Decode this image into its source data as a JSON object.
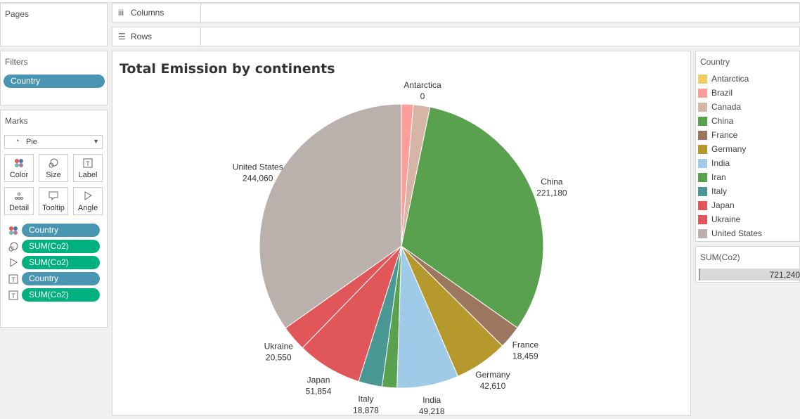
{
  "pages": {
    "title": "Pages"
  },
  "shelves": {
    "columns": "Columns",
    "rows": "Rows"
  },
  "filters": {
    "title": "Filters",
    "pill": "Country"
  },
  "marks": {
    "title": "Marks",
    "type": "Pie",
    "buttons": {
      "color": "Color",
      "size": "Size",
      "label": "Label",
      "detail": "Detail",
      "tooltip": "Tooltip",
      "angle": "Angle"
    },
    "rows": [
      {
        "icon": "color-icon",
        "label": "Country",
        "kind": "dimension"
      },
      {
        "icon": "size-icon",
        "label": "SUM(Co2)",
        "kind": "measure"
      },
      {
        "icon": "angle-icon",
        "label": "SUM(Co2)",
        "kind": "measure"
      },
      {
        "icon": "label-icon",
        "label": "Country",
        "kind": "dimension"
      },
      {
        "icon": "label-icon",
        "label": "SUM(Co2)",
        "kind": "measure"
      }
    ]
  },
  "legend": {
    "title": "Country",
    "items": [
      {
        "label": "Antarctica",
        "color": "#f1ce63"
      },
      {
        "label": "Brazil",
        "color": "#ff9d9a"
      },
      {
        "label": "Canada",
        "color": "#d7b5a6"
      },
      {
        "label": "China",
        "color": "#59a14f"
      },
      {
        "label": "France",
        "color": "#9d7660"
      },
      {
        "label": "Germany",
        "color": "#b6992d"
      },
      {
        "label": "India",
        "color": "#a0cbe8"
      },
      {
        "label": "Iran",
        "color": "#59a14f"
      },
      {
        "label": "Italy",
        "color": "#499894"
      },
      {
        "label": "Japan",
        "color": "#e15759"
      },
      {
        "label": "Ukraine",
        "color": "#e15759"
      },
      {
        "label": "United States",
        "color": "#bab0ac"
      }
    ]
  },
  "size_legend": {
    "title": "SUM(Co2)",
    "value": "721,240"
  },
  "chart_data": {
    "type": "pie",
    "title": "Total Emission by continents",
    "slices": [
      {
        "name": "Antarctica",
        "value": 0,
        "value_label": "0",
        "color": "#f1ce63",
        "labeled": true
      },
      {
        "name": "Brazil",
        "value": 9400,
        "color": "#ff9d9a",
        "labeled": false
      },
      {
        "name": "Canada",
        "value": 13300,
        "color": "#d7b5a6",
        "labeled": false
      },
      {
        "name": "China",
        "value": 221180,
        "value_label": "221,180",
        "color": "#59a14f",
        "labeled": true
      },
      {
        "name": "France",
        "value": 18459,
        "value_label": "18,459",
        "color": "#9d7660",
        "labeled": true
      },
      {
        "name": "Germany",
        "value": 42610,
        "value_label": "42,610",
        "color": "#b6992d",
        "labeled": true
      },
      {
        "name": "India",
        "value": 49218,
        "value_label": "49,218",
        "color": "#a0cbe8",
        "labeled": true
      },
      {
        "name": "Iran",
        "value": 11800,
        "color": "#59a14f",
        "labeled": false
      },
      {
        "name": "Italy",
        "value": 18878,
        "value_label": "18,878",
        "color": "#499894",
        "labeled": true
      },
      {
        "name": "Japan",
        "value": 51854,
        "value_label": "51,854",
        "color": "#e15759",
        "labeled": true
      },
      {
        "name": "Ukraine",
        "value": 20550,
        "value_label": "20,550",
        "color": "#e15759",
        "labeled": true
      },
      {
        "name": "United States",
        "value": 244060,
        "value_label": "244,060",
        "color": "#bab0ac",
        "labeled": true
      }
    ]
  }
}
